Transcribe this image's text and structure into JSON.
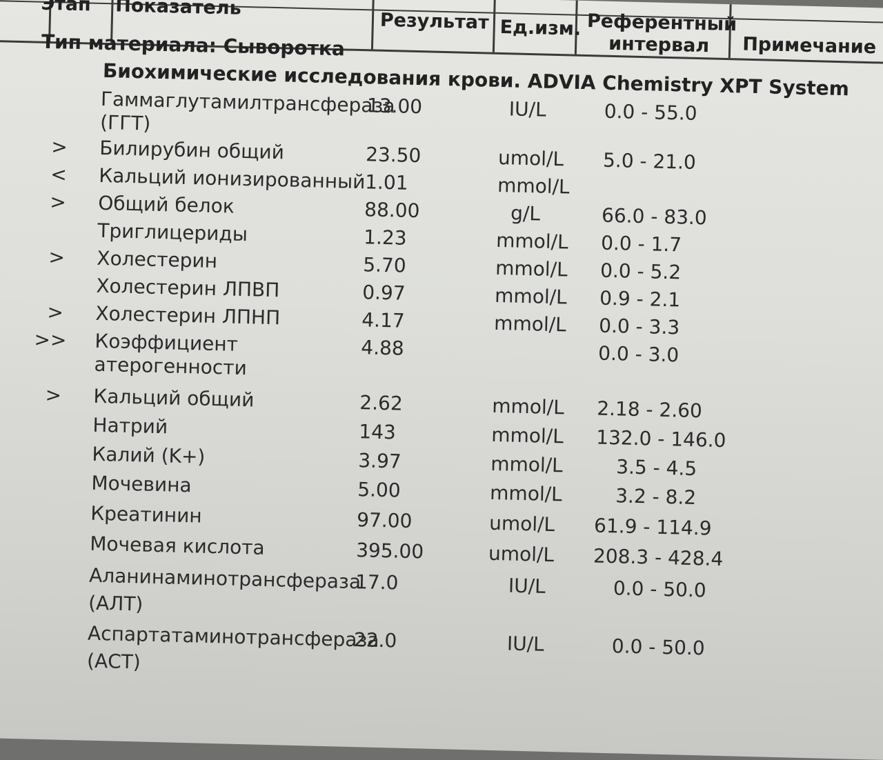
{
  "header": {
    "col_code": "Этап",
    "col_name": "Показатель",
    "col_result": "Результат",
    "col_unit": "Ед.изм.",
    "col_ref_line1": "Референтный",
    "col_ref_line2": "интервал",
    "col_note": "Примечание"
  },
  "material": "Тип материала: Сыворотка",
  "section": "Биохимические исследования крови. ADVIA Chemistry XPT System",
  "rows": [
    {
      "flag": "",
      "name": "Гаммаглутамилтрансфераза",
      "name2": "(ГГТ)",
      "value": "13.00",
      "unit": "IU/L",
      "ref": "0.0 - 55.0"
    },
    {
      "flag": ">",
      "name": "Билирубин общий",
      "name2": "",
      "value": "23.50",
      "unit": "umol/L",
      "ref": "5.0 - 21.0"
    },
    {
      "flag": "<",
      "name": "Кальций ионизированный",
      "name2": "",
      "value": "1.01",
      "unit": "mmol/L",
      "ref": ""
    },
    {
      "flag": ">",
      "name": "Общий белок",
      "name2": "",
      "value": "88.00",
      "unit": "g/L",
      "ref": "66.0 - 83.0"
    },
    {
      "flag": "",
      "name": "Триглицериды",
      "name2": "",
      "value": "1.23",
      "unit": "mmol/L",
      "ref": "0.0 - 1.7"
    },
    {
      "flag": ">",
      "name": "Холестерин",
      "name2": "",
      "value": "5.70",
      "unit": "mmol/L",
      "ref": "0.0 - 5.2"
    },
    {
      "flag": "",
      "name": "Холестерин ЛПВП",
      "name2": "",
      "value": "0.97",
      "unit": "mmol/L",
      "ref": "0.9 - 2.1"
    },
    {
      "flag": ">",
      "name": "Холестерин ЛПНП",
      "name2": "",
      "value": "4.17",
      "unit": "mmol/L",
      "ref": "0.0 - 3.3"
    },
    {
      "flag": ">>",
      "name": "Коэффициент",
      "name2": "атерогенности",
      "value": "4.88",
      "unit": "",
      "ref": "0.0 - 3.0"
    },
    {
      "flag": ">",
      "name": "Кальций общий",
      "name2": "",
      "value": "2.62",
      "unit": "mmol/L",
      "ref": "2.18 - 2.60"
    },
    {
      "flag": "",
      "name": "Натрий",
      "name2": "",
      "value": "143",
      "unit": "mmol/L",
      "ref": "132.0 - 146.0"
    },
    {
      "flag": "",
      "name": "Калий (K+)",
      "name2": "",
      "value": "3.97",
      "unit": "mmol/L",
      "ref": "3.5 - 4.5"
    },
    {
      "flag": "",
      "name": "Мочевина",
      "name2": "",
      "value": "5.00",
      "unit": "mmol/L",
      "ref": "3.2 - 8.2"
    },
    {
      "flag": "",
      "name": "Креатинин",
      "name2": "",
      "value": "97.00",
      "unit": "umol/L",
      "ref": "61.9 - 114.9"
    },
    {
      "flag": "",
      "name": "Мочевая кислота",
      "name2": "",
      "value": "395.00",
      "unit": "umol/L",
      "ref": "208.3 - 428.4"
    },
    {
      "flag": "",
      "name": "Аланинаминотрансфераза",
      "name2": "(АЛТ)",
      "value": "17.0",
      "unit": "IU/L",
      "ref": "0.0 - 50.0"
    },
    {
      "flag": "",
      "name": "Аспартатаминотрансфераза",
      "name2": "(АСТ)",
      "value": "22.0",
      "unit": "IU/L",
      "ref": "0.0 - 50.0"
    }
  ]
}
